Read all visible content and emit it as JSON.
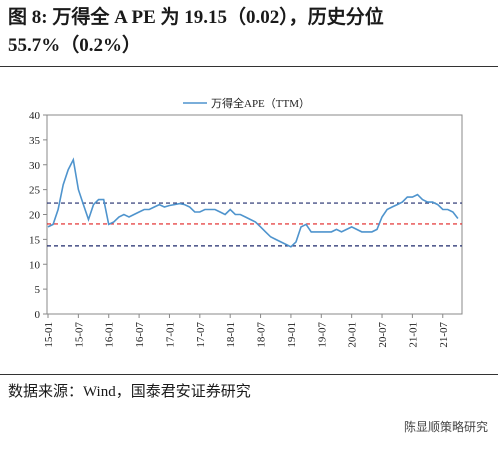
{
  "title": "图 8: 万得全 A PE 为 19.15（0.02），历史分位 55.7%（0.2%）",
  "source": "数据来源：Wind，国泰君安证券研究",
  "watermark": "陈显顺策略研究",
  "chart_data": {
    "type": "line",
    "categories": [
      "15-01",
      null,
      null,
      null,
      null,
      null,
      "15-07",
      null,
      null,
      null,
      null,
      null,
      "16-01",
      null,
      null,
      null,
      null,
      null,
      "16-07",
      null,
      null,
      null,
      null,
      null,
      "17-01",
      null,
      null,
      null,
      null,
      null,
      "17-07",
      null,
      null,
      null,
      null,
      null,
      "18-01",
      null,
      null,
      null,
      null,
      null,
      "18-07",
      null,
      null,
      null,
      null,
      null,
      "19-01",
      null,
      null,
      null,
      null,
      null,
      "19-07",
      null,
      null,
      null,
      null,
      null,
      "20-01",
      null,
      null,
      null,
      null,
      null,
      "20-07",
      null,
      null,
      null,
      null,
      null,
      "21-01",
      null,
      null,
      null,
      null,
      null,
      "21-07",
      null,
      null,
      null
    ],
    "series": [
      {
        "name": "万得全APE（TTM）",
        "color": "#4f94cd",
        "values": [
          17.5,
          18,
          21,
          26,
          29,
          31,
          25,
          22,
          19,
          22,
          23,
          23,
          18,
          18.5,
          19.5,
          20,
          19.5,
          20,
          20.5,
          21,
          21,
          21.5,
          22,
          21.5,
          21.8,
          22,
          22.2,
          22,
          21.5,
          20.5,
          20.5,
          21,
          21,
          21,
          20.5,
          20,
          21,
          20,
          20,
          19.5,
          19,
          18.5,
          17.5,
          16.5,
          15.5,
          15,
          14.5,
          14,
          13.5,
          14.5,
          17.5,
          18,
          16.5,
          16.5,
          16.5,
          16.5,
          16.5,
          17,
          16.5,
          17,
          17.5,
          17,
          16.5,
          16.5,
          16.5,
          17,
          19.5,
          21,
          21.5,
          22,
          22.5,
          23.5,
          23.5,
          24,
          23,
          22.5,
          22.5,
          22,
          21,
          21,
          20.5,
          19.2
        ]
      }
    ],
    "reference_lines": [
      {
        "value": 22.3,
        "color": "#1f2a6b"
      },
      {
        "value": 18.1,
        "color": "#e02020"
      },
      {
        "value": 13.7,
        "color": "#1f2a6b"
      }
    ],
    "ylim": [
      0,
      40
    ],
    "yticks": [
      0,
      5,
      10,
      15,
      20,
      25,
      30,
      35,
      40
    ],
    "legend": "top"
  }
}
